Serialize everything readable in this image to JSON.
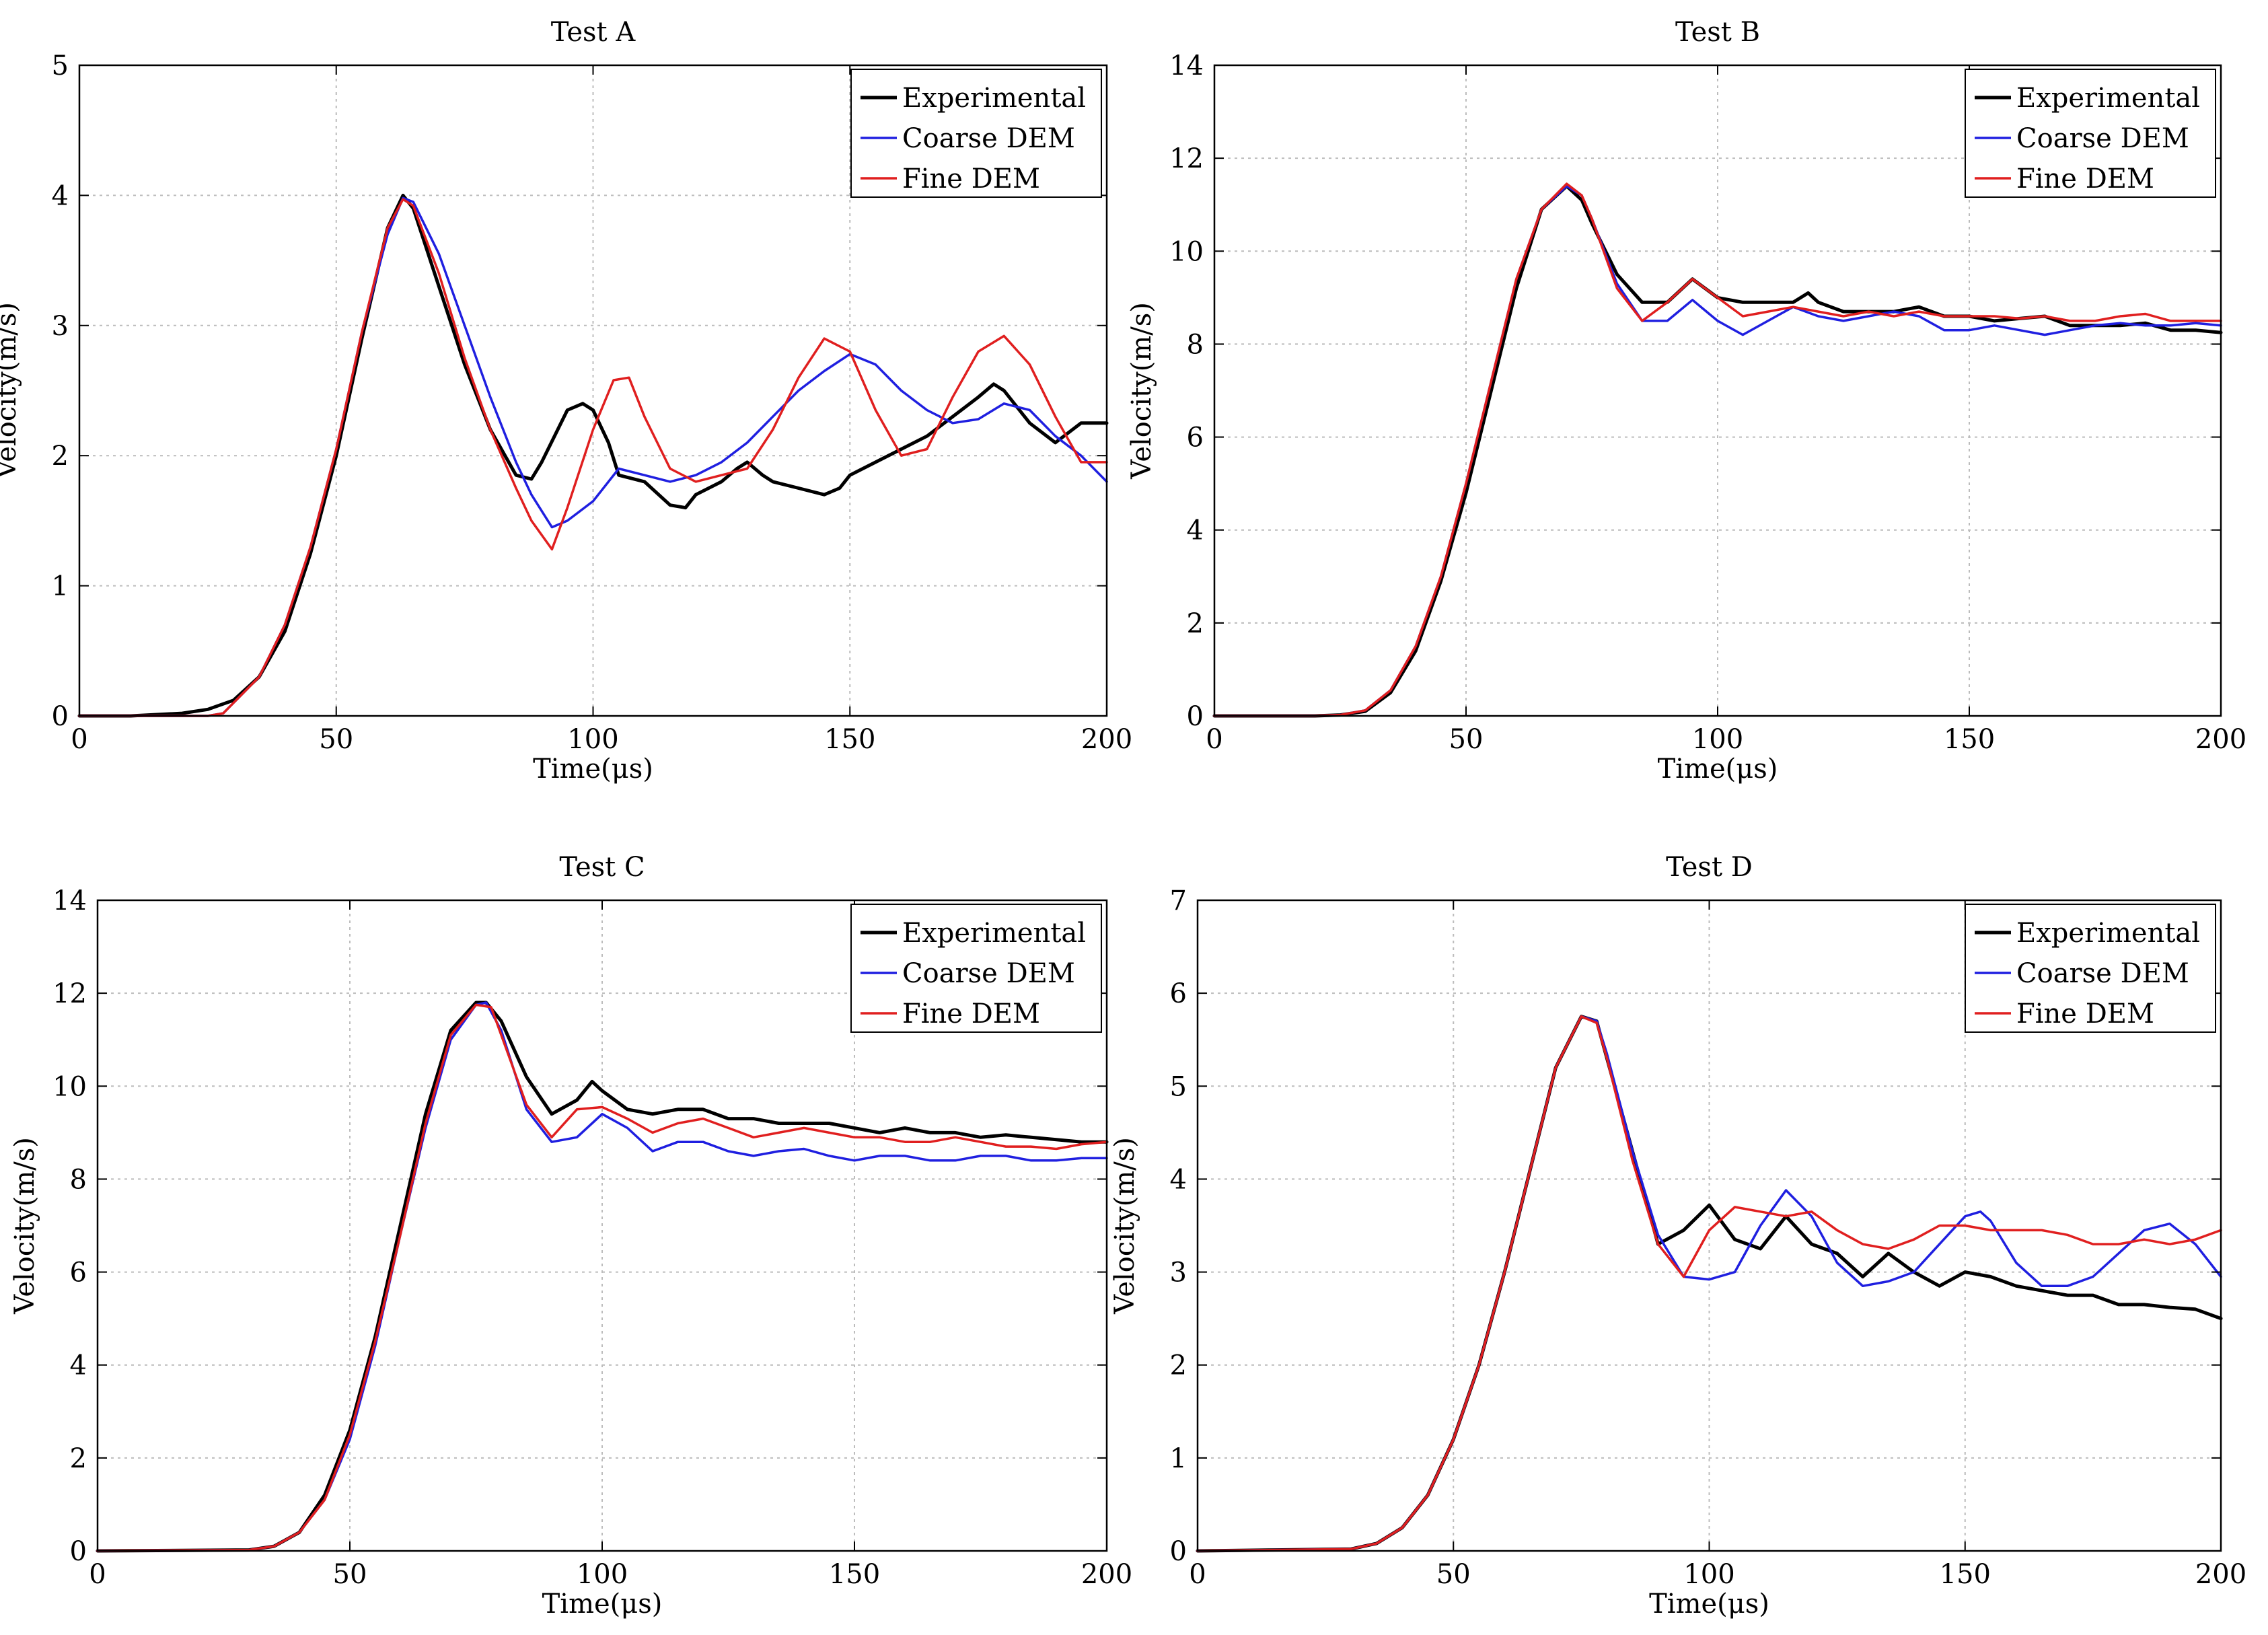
{
  "chart_data": [
    {
      "type": "line",
      "title": "Test A",
      "xlabel": "Time(μs)",
      "ylabel": "Velocity(m/s)",
      "xlim": [
        0,
        200
      ],
      "ylim": [
        0,
        5
      ],
      "xticks": [
        0,
        50,
        100,
        150,
        200
      ],
      "yticks": [
        0,
        1,
        2,
        3,
        4,
        5
      ],
      "grid": true,
      "legend_position": "top-right",
      "series": [
        {
          "name": "Experimental",
          "color": "#000000",
          "x": [
            0,
            10,
            20,
            25,
            30,
            35,
            40,
            45,
            50,
            55,
            60,
            63,
            65,
            70,
            75,
            80,
            85,
            88,
            90,
            95,
            98,
            100,
            103,
            105,
            110,
            115,
            118,
            120,
            125,
            128,
            130,
            133,
            135,
            140,
            145,
            148,
            150,
            155,
            160,
            165,
            170,
            175,
            178,
            180,
            185,
            190,
            195,
            200
          ],
          "y": [
            0,
            0,
            0.02,
            0.05,
            0.12,
            0.3,
            0.65,
            1.25,
            2.0,
            2.9,
            3.75,
            4.0,
            3.9,
            3.3,
            2.7,
            2.2,
            1.85,
            1.82,
            1.95,
            2.35,
            2.4,
            2.35,
            2.1,
            1.85,
            1.8,
            1.62,
            1.6,
            1.7,
            1.8,
            1.9,
            1.95,
            1.85,
            1.8,
            1.75,
            1.7,
            1.75,
            1.85,
            1.95,
            2.05,
            2.15,
            2.3,
            2.45,
            2.55,
            2.5,
            2.25,
            2.1,
            2.25,
            2.25
          ]
        },
        {
          "name": "Coarse DEM",
          "color": "#1f1fe0",
          "x": [
            0,
            20,
            25,
            28,
            30,
            35,
            40,
            45,
            50,
            55,
            60,
            63,
            65,
            70,
            75,
            80,
            85,
            88,
            92,
            95,
            100,
            105,
            110,
            115,
            120,
            125,
            130,
            135,
            140,
            145,
            150,
            155,
            160,
            165,
            170,
            175,
            180,
            185,
            190,
            195,
            200
          ],
          "y": [
            0,
            0,
            0,
            0.02,
            0.1,
            0.3,
            0.7,
            1.3,
            2.05,
            2.95,
            3.7,
            3.98,
            3.95,
            3.55,
            3.0,
            2.45,
            1.95,
            1.7,
            1.45,
            1.5,
            1.65,
            1.9,
            1.85,
            1.8,
            1.85,
            1.95,
            2.1,
            2.3,
            2.5,
            2.65,
            2.78,
            2.7,
            2.5,
            2.35,
            2.25,
            2.28,
            2.4,
            2.35,
            2.15,
            2.0,
            1.8
          ]
        },
        {
          "name": "Fine DEM",
          "color": "#e01f1f",
          "x": [
            0,
            20,
            25,
            28,
            30,
            35,
            40,
            45,
            50,
            55,
            60,
            63,
            65,
            70,
            75,
            80,
            85,
            88,
            92,
            95,
            100,
            104,
            107,
            110,
            115,
            120,
            125,
            130,
            135,
            140,
            145,
            150,
            155,
            160,
            165,
            170,
            175,
            180,
            185,
            190,
            195,
            200
          ],
          "y": [
            0,
            0,
            0,
            0.02,
            0.1,
            0.3,
            0.7,
            1.3,
            2.05,
            2.95,
            3.75,
            3.97,
            3.92,
            3.4,
            2.75,
            2.2,
            1.75,
            1.5,
            1.28,
            1.6,
            2.2,
            2.58,
            2.6,
            2.3,
            1.9,
            1.8,
            1.85,
            1.9,
            2.2,
            2.6,
            2.9,
            2.8,
            2.35,
            2.0,
            2.05,
            2.45,
            2.8,
            2.92,
            2.7,
            2.3,
            1.95,
            1.95
          ]
        }
      ]
    },
    {
      "type": "line",
      "title": "Test B",
      "xlabel": "Time(μs)",
      "ylabel": "Velocity(m/s)",
      "xlim": [
        0,
        200
      ],
      "ylim": [
        0,
        14
      ],
      "xticks": [
        0,
        50,
        100,
        150,
        200
      ],
      "yticks": [
        0,
        2,
        4,
        6,
        8,
        10,
        12,
        14
      ],
      "grid": true,
      "legend_position": "top-right",
      "series": [
        {
          "name": "Experimental",
          "color": "#000000",
          "x": [
            0,
            20,
            25,
            30,
            35,
            40,
            45,
            50,
            55,
            60,
            65,
            70,
            73,
            75,
            80,
            85,
            90,
            95,
            100,
            105,
            110,
            115,
            118,
            120,
            125,
            130,
            135,
            140,
            145,
            150,
            155,
            160,
            165,
            170,
            175,
            180,
            185,
            190,
            195,
            200
          ],
          "y": [
            0,
            0,
            0.02,
            0.1,
            0.5,
            1.4,
            2.9,
            4.8,
            7.0,
            9.2,
            10.9,
            11.4,
            11.1,
            10.6,
            9.5,
            8.9,
            8.9,
            9.4,
            9.0,
            8.9,
            8.9,
            8.9,
            9.1,
            8.9,
            8.7,
            8.7,
            8.7,
            8.8,
            8.6,
            8.6,
            8.5,
            8.55,
            8.6,
            8.4,
            8.4,
            8.4,
            8.45,
            8.3,
            8.3,
            8.25
          ]
        },
        {
          "name": "Coarse DEM",
          "color": "#1f1fe0",
          "x": [
            0,
            20,
            25,
            30,
            35,
            40,
            45,
            50,
            55,
            60,
            65,
            70,
            73,
            75,
            80,
            85,
            90,
            95,
            100,
            105,
            110,
            115,
            120,
            125,
            130,
            135,
            140,
            145,
            150,
            155,
            160,
            165,
            170,
            175,
            180,
            185,
            190,
            195,
            200
          ],
          "y": [
            0,
            0,
            0.02,
            0.12,
            0.55,
            1.5,
            3.0,
            5.0,
            7.2,
            9.4,
            10.9,
            11.4,
            11.2,
            10.7,
            9.3,
            8.5,
            8.5,
            8.95,
            8.5,
            8.2,
            8.5,
            8.8,
            8.6,
            8.5,
            8.6,
            8.7,
            8.6,
            8.3,
            8.3,
            8.4,
            8.3,
            8.2,
            8.3,
            8.4,
            8.45,
            8.4,
            8.4,
            8.45,
            8.4
          ]
        },
        {
          "name": "Fine DEM",
          "color": "#e01f1f",
          "x": [
            0,
            20,
            25,
            30,
            35,
            40,
            45,
            50,
            55,
            60,
            65,
            70,
            73,
            75,
            80,
            85,
            90,
            95,
            100,
            105,
            110,
            115,
            120,
            125,
            130,
            135,
            140,
            145,
            150,
            155,
            160,
            165,
            170,
            175,
            180,
            185,
            190,
            195,
            200
          ],
          "y": [
            0,
            0,
            0.02,
            0.12,
            0.55,
            1.5,
            3.0,
            5.0,
            7.2,
            9.4,
            10.9,
            11.45,
            11.2,
            10.7,
            9.2,
            8.5,
            8.9,
            9.4,
            9.0,
            8.6,
            8.7,
            8.8,
            8.7,
            8.6,
            8.7,
            8.6,
            8.7,
            8.6,
            8.6,
            8.6,
            8.55,
            8.6,
            8.5,
            8.5,
            8.6,
            8.65,
            8.5,
            8.5,
            8.5
          ]
        }
      ]
    },
    {
      "type": "line",
      "title": "Test C",
      "xlabel": "Time(μs)",
      "ylabel": "Velocity(m/s)",
      "xlim": [
        0,
        200
      ],
      "ylim": [
        0,
        14
      ],
      "xticks": [
        0,
        50,
        100,
        150,
        200
      ],
      "yticks": [
        0,
        2,
        4,
        6,
        8,
        10,
        12,
        14
      ],
      "grid": true,
      "legend_position": "top-right",
      "series": [
        {
          "name": "Experimental",
          "color": "#000000",
          "x": [
            0,
            30,
            35,
            40,
            45,
            50,
            55,
            60,
            65,
            70,
            75,
            77,
            80,
            85,
            90,
            95,
            98,
            100,
            105,
            110,
            115,
            120,
            125,
            130,
            135,
            140,
            145,
            150,
            155,
            160,
            165,
            170,
            175,
            180,
            185,
            190,
            195,
            200
          ],
          "y": [
            0,
            0.02,
            0.1,
            0.4,
            1.2,
            2.6,
            4.6,
            7.0,
            9.4,
            11.2,
            11.8,
            11.8,
            11.4,
            10.2,
            9.4,
            9.7,
            10.1,
            9.9,
            9.5,
            9.4,
            9.5,
            9.5,
            9.3,
            9.3,
            9.2,
            9.2,
            9.2,
            9.1,
            9.0,
            9.1,
            9.0,
            9.0,
            8.9,
            8.95,
            8.9,
            8.85,
            8.8,
            8.8
          ]
        },
        {
          "name": "Coarse DEM",
          "color": "#1f1fe0",
          "x": [
            0,
            30,
            35,
            40,
            45,
            50,
            55,
            60,
            65,
            70,
            75,
            77,
            80,
            85,
            90,
            95,
            100,
            105,
            110,
            115,
            120,
            125,
            130,
            135,
            140,
            145,
            150,
            155,
            160,
            165,
            170,
            175,
            180,
            185,
            190,
            195,
            200
          ],
          "y": [
            0,
            0.02,
            0.1,
            0.4,
            1.1,
            2.4,
            4.4,
            6.8,
            9.1,
            11.0,
            11.75,
            11.8,
            11.2,
            9.5,
            8.8,
            8.9,
            9.4,
            9.1,
            8.6,
            8.8,
            8.8,
            8.6,
            8.5,
            8.6,
            8.65,
            8.5,
            8.4,
            8.5,
            8.5,
            8.4,
            8.4,
            8.5,
            8.5,
            8.4,
            8.4,
            8.45,
            8.45
          ]
        },
        {
          "name": "Fine DEM",
          "color": "#e01f1f",
          "x": [
            0,
            30,
            35,
            40,
            45,
            50,
            55,
            60,
            65,
            70,
            75,
            78,
            80,
            85,
            90,
            95,
            100,
            105,
            110,
            115,
            120,
            125,
            130,
            135,
            140,
            145,
            150,
            155,
            160,
            165,
            170,
            175,
            180,
            185,
            190,
            195,
            200
          ],
          "y": [
            0,
            0.02,
            0.1,
            0.4,
            1.1,
            2.5,
            4.5,
            6.8,
            9.2,
            11.1,
            11.75,
            11.7,
            11.1,
            9.6,
            8.9,
            9.5,
            9.55,
            9.3,
            9.0,
            9.2,
            9.3,
            9.1,
            8.9,
            9.0,
            9.1,
            9.0,
            8.9,
            8.9,
            8.8,
            8.8,
            8.9,
            8.8,
            8.7,
            8.7,
            8.65,
            8.75,
            8.8
          ]
        }
      ]
    },
    {
      "type": "line",
      "title": "Test D",
      "xlabel": "Time(μs)",
      "ylabel": "Velocity(m/s)",
      "xlim": [
        0,
        200
      ],
      "ylim": [
        0,
        7
      ],
      "xticks": [
        0,
        50,
        100,
        150,
        200
      ],
      "yticks": [
        0,
        1,
        2,
        3,
        4,
        5,
        6,
        7
      ],
      "grid": true,
      "legend_position": "top-right",
      "series": [
        {
          "name": "Experimental",
          "color": "#000000",
          "x": [
            0,
            30,
            35,
            40,
            45,
            50,
            55,
            60,
            65,
            70,
            75,
            78,
            80,
            85,
            90,
            95,
            100,
            105,
            110,
            115,
            120,
            125,
            130,
            135,
            140,
            145,
            150,
            155,
            160,
            165,
            170,
            175,
            180,
            185,
            190,
            195,
            200
          ],
          "y": [
            0,
            0.02,
            0.08,
            0.25,
            0.6,
            1.2,
            2.0,
            3.0,
            4.1,
            5.2,
            5.75,
            5.7,
            5.3,
            4.3,
            3.3,
            3.45,
            3.72,
            3.35,
            3.25,
            3.6,
            3.3,
            3.2,
            2.95,
            3.2,
            3.0,
            2.85,
            3.0,
            2.95,
            2.85,
            2.8,
            2.75,
            2.75,
            2.65,
            2.65,
            2.62,
            2.6,
            2.5
          ]
        },
        {
          "name": "Coarse DEM",
          "color": "#1f1fe0",
          "x": [
            0,
            30,
            35,
            40,
            45,
            50,
            55,
            60,
            65,
            70,
            75,
            78,
            80,
            85,
            90,
            95,
            100,
            105,
            110,
            115,
            120,
            125,
            130,
            135,
            140,
            145,
            150,
            153,
            155,
            160,
            165,
            170,
            175,
            180,
            185,
            190,
            195,
            200
          ],
          "y": [
            0,
            0.02,
            0.08,
            0.25,
            0.6,
            1.2,
            2.0,
            3.0,
            4.1,
            5.2,
            5.75,
            5.7,
            5.35,
            4.3,
            3.4,
            2.95,
            2.92,
            3.0,
            3.5,
            3.88,
            3.6,
            3.1,
            2.85,
            2.9,
            3.0,
            3.3,
            3.6,
            3.65,
            3.55,
            3.1,
            2.85,
            2.85,
            2.95,
            3.2,
            3.45,
            3.52,
            3.3,
            2.95
          ]
        },
        {
          "name": "Fine DEM",
          "color": "#e01f1f",
          "x": [
            0,
            30,
            35,
            40,
            45,
            50,
            55,
            60,
            65,
            70,
            75,
            78,
            80,
            85,
            90,
            95,
            100,
            105,
            110,
            115,
            120,
            125,
            130,
            135,
            140,
            145,
            150,
            155,
            160,
            165,
            170,
            175,
            180,
            185,
            190,
            195,
            200
          ],
          "y": [
            0,
            0.02,
            0.08,
            0.25,
            0.6,
            1.2,
            2.0,
            3.0,
            4.1,
            5.2,
            5.75,
            5.68,
            5.3,
            4.2,
            3.3,
            2.95,
            3.45,
            3.7,
            3.65,
            3.6,
            3.65,
            3.45,
            3.3,
            3.25,
            3.35,
            3.5,
            3.5,
            3.45,
            3.45,
            3.45,
            3.4,
            3.3,
            3.3,
            3.35,
            3.3,
            3.35,
            3.45
          ]
        }
      ]
    }
  ]
}
